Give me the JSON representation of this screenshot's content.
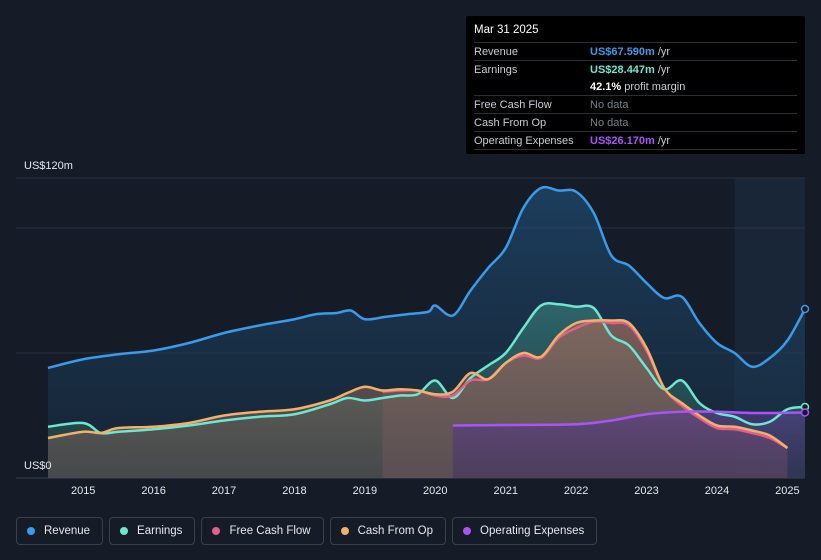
{
  "tooltip": {
    "date": "Mar 31 2025",
    "rows": {
      "revenue": {
        "label": "Revenue",
        "value": "US$67.590m",
        "unit": "/yr",
        "color": "#3b9be8"
      },
      "earnings": {
        "label": "Earnings",
        "value": "US$28.447m",
        "unit": "/yr",
        "color": "#6ee7d0"
      },
      "margin": {
        "value": "42.1%",
        "unit": "profit margin"
      },
      "fcf": {
        "label": "Free Cash Flow",
        "value": "No data"
      },
      "cfo": {
        "label": "Cash From Op",
        "value": "No data"
      },
      "opex": {
        "label": "Operating Expenses",
        "value": "US$26.170m",
        "unit": "/yr",
        "color": "#a855f7"
      }
    }
  },
  "chart_data": {
    "type": "area",
    "y_top_label": "US$120m",
    "y_bottom_label": "US$0",
    "ylim": [
      0,
      120
    ],
    "xlim": [
      2014.5,
      2025.25
    ],
    "x_ticks": [
      "2015",
      "2016",
      "2017",
      "2018",
      "2019",
      "2020",
      "2021",
      "2022",
      "2023",
      "2024",
      "2025"
    ],
    "forecast_start": 2024.25,
    "series": [
      {
        "name": "Revenue",
        "color": "#3b9be8",
        "points": [
          [
            2014.5,
            44
          ],
          [
            2015,
            47.5
          ],
          [
            2015.5,
            49.5
          ],
          [
            2016,
            51
          ],
          [
            2016.5,
            54
          ],
          [
            2017,
            58
          ],
          [
            2017.5,
            61
          ],
          [
            2018,
            63.5
          ],
          [
            2018.3,
            65.5
          ],
          [
            2018.6,
            66
          ],
          [
            2018.8,
            67
          ],
          [
            2019,
            63.5
          ],
          [
            2019.3,
            64.5
          ],
          [
            2019.6,
            65.5
          ],
          [
            2019.9,
            66.5
          ],
          [
            2020,
            69
          ],
          [
            2020.25,
            65
          ],
          [
            2020.5,
            75
          ],
          [
            2020.75,
            84
          ],
          [
            2021,
            92
          ],
          [
            2021.25,
            108
          ],
          [
            2021.5,
            116
          ],
          [
            2021.75,
            115
          ],
          [
            2022,
            114.5
          ],
          [
            2022.25,
            106
          ],
          [
            2022.5,
            89
          ],
          [
            2022.75,
            85
          ],
          [
            2023,
            78
          ],
          [
            2023.25,
            72
          ],
          [
            2023.5,
            72.5
          ],
          [
            2023.75,
            62
          ],
          [
            2024,
            54
          ],
          [
            2024.25,
            50
          ],
          [
            2024.5,
            44.5
          ],
          [
            2024.75,
            48
          ],
          [
            2025,
            55
          ],
          [
            2025.25,
            67.6
          ]
        ]
      },
      {
        "name": "Earnings",
        "color": "#6ee7d0",
        "points": [
          [
            2014.5,
            20.5
          ],
          [
            2015,
            22
          ],
          [
            2015.25,
            18
          ],
          [
            2015.5,
            18.5
          ],
          [
            2016,
            19.5
          ],
          [
            2016.5,
            21
          ],
          [
            2017,
            23
          ],
          [
            2017.5,
            24.5
          ],
          [
            2018,
            25.5
          ],
          [
            2018.5,
            29.5
          ],
          [
            2018.75,
            32
          ],
          [
            2019,
            31
          ],
          [
            2019.25,
            32
          ],
          [
            2019.5,
            33
          ],
          [
            2019.75,
            33.5
          ],
          [
            2020,
            39
          ],
          [
            2020.25,
            32
          ],
          [
            2020.5,
            40
          ],
          [
            2020.75,
            45
          ],
          [
            2021,
            50
          ],
          [
            2021.25,
            60
          ],
          [
            2021.5,
            69
          ],
          [
            2021.75,
            69.5
          ],
          [
            2022,
            68.5
          ],
          [
            2022.25,
            68
          ],
          [
            2022.5,
            57
          ],
          [
            2022.75,
            53
          ],
          [
            2023,
            44
          ],
          [
            2023.25,
            35.5
          ],
          [
            2023.5,
            39
          ],
          [
            2023.75,
            30
          ],
          [
            2024,
            26
          ],
          [
            2024.25,
            24.5
          ],
          [
            2024.5,
            21.5
          ],
          [
            2024.75,
            22.5
          ],
          [
            2025,
            27.5
          ],
          [
            2025.25,
            28.4
          ]
        ]
      },
      {
        "name": "Free Cash Flow",
        "color": "#e0608a",
        "points": [
          [
            2019.25,
            34.5
          ],
          [
            2019.5,
            35
          ],
          [
            2019.75,
            35
          ],
          [
            2020,
            33
          ],
          [
            2020.25,
            33
          ],
          [
            2020.5,
            39
          ],
          [
            2020.75,
            39.5
          ],
          [
            2021,
            46
          ],
          [
            2021.25,
            49
          ],
          [
            2021.5,
            48
          ],
          [
            2021.75,
            56
          ],
          [
            2022,
            60
          ],
          [
            2022.25,
            62.5
          ],
          [
            2022.5,
            62
          ],
          [
            2022.75,
            61
          ],
          [
            2023,
            51
          ],
          [
            2023.25,
            36
          ],
          [
            2023.5,
            29
          ],
          [
            2023.75,
            24
          ],
          [
            2024,
            20
          ],
          [
            2024.25,
            19.5
          ],
          [
            2024.5,
            18
          ],
          [
            2024.75,
            16
          ],
          [
            2025,
            12
          ]
        ]
      },
      {
        "name": "Cash From Op",
        "color": "#f2b06a",
        "points": [
          [
            2014.5,
            16
          ],
          [
            2015,
            18.5
          ],
          [
            2015.25,
            18
          ],
          [
            2015.5,
            20
          ],
          [
            2016,
            20.5
          ],
          [
            2016.5,
            22
          ],
          [
            2017,
            25
          ],
          [
            2017.5,
            26.5
          ],
          [
            2018,
            27.5
          ],
          [
            2018.5,
            31
          ],
          [
            2018.75,
            34
          ],
          [
            2019,
            36.5
          ],
          [
            2019.25,
            35
          ],
          [
            2019.5,
            35.5
          ],
          [
            2019.75,
            35
          ],
          [
            2020,
            33.5
          ],
          [
            2020.25,
            34.5
          ],
          [
            2020.5,
            42
          ],
          [
            2020.75,
            39.5
          ],
          [
            2021,
            46
          ],
          [
            2021.25,
            50
          ],
          [
            2021.5,
            48.5
          ],
          [
            2021.75,
            57
          ],
          [
            2022,
            62
          ],
          [
            2022.25,
            63
          ],
          [
            2022.5,
            63
          ],
          [
            2022.75,
            62
          ],
          [
            2023,
            52
          ],
          [
            2023.25,
            36
          ],
          [
            2023.5,
            30
          ],
          [
            2023.75,
            25
          ],
          [
            2024,
            21
          ],
          [
            2024.25,
            20.5
          ],
          [
            2024.5,
            19
          ],
          [
            2024.75,
            17
          ],
          [
            2025,
            12
          ]
        ]
      },
      {
        "name": "Operating Expenses",
        "color": "#a855f7",
        "points": [
          [
            2020.25,
            21
          ],
          [
            2021,
            21.2
          ],
          [
            2022,
            21.5
          ],
          [
            2022.5,
            23
          ],
          [
            2023,
            25.5
          ],
          [
            2023.5,
            26.5
          ],
          [
            2024,
            26.5
          ],
          [
            2024.5,
            26
          ],
          [
            2025,
            26.1
          ],
          [
            2025.25,
            26.2
          ]
        ]
      }
    ]
  },
  "legend": [
    "Revenue",
    "Earnings",
    "Free Cash Flow",
    "Cash From Op",
    "Operating Expenses"
  ]
}
